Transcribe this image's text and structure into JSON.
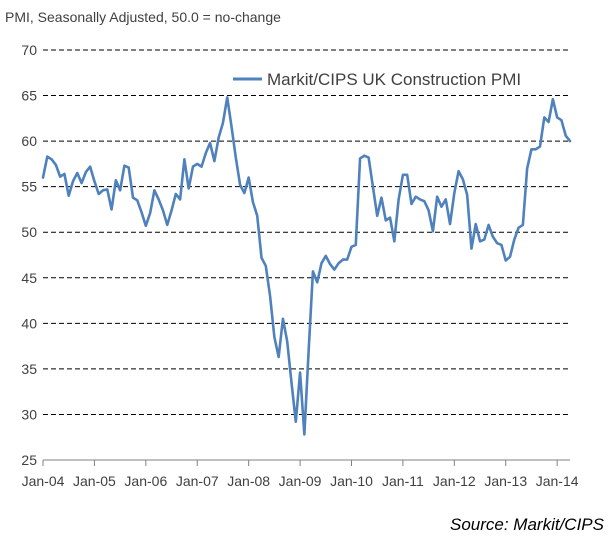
{
  "chart_data": {
    "type": "line",
    "subtitle": "PMI, Seasonally Adjusted, 50.0 = no-change",
    "source": "Source: Markit/CIPS",
    "xlabel": "",
    "ylabel": "",
    "ylim": [
      25,
      70
    ],
    "y_ticks": [
      25,
      30,
      35,
      40,
      45,
      50,
      55,
      60,
      65,
      70
    ],
    "x_tick_labels": [
      "Jan-04",
      "Jan-05",
      "Jan-06",
      "Jan-07",
      "Jan-08",
      "Jan-09",
      "Jan-10",
      "Jan-11",
      "Jan-12",
      "Jan-13",
      "Jan-14"
    ],
    "grid": "horizontal dashed",
    "legend_position": "top-right",
    "colors": {
      "line": "#4f81bd",
      "grid": "#000000",
      "axis": "#808080"
    },
    "series": [
      {
        "name": "Markit/CIPS UK Construction PMI",
        "x_start": "Jan-04",
        "frequency": "monthly",
        "values": [
          56.0,
          58.3,
          58.0,
          57.4,
          56.1,
          56.4,
          54.0,
          55.6,
          56.5,
          55.4,
          56.6,
          57.2,
          55.6,
          54.2,
          54.6,
          54.7,
          52.5,
          55.7,
          54.6,
          57.3,
          57.1,
          53.8,
          53.5,
          52.2,
          50.7,
          52.1,
          54.6,
          53.6,
          52.4,
          50.8,
          52.4,
          54.2,
          53.6,
          58.0,
          54.8,
          57.2,
          57.5,
          57.2,
          58.7,
          59.8,
          57.8,
          60.4,
          62.0,
          64.8,
          61.6,
          58.2,
          55.2,
          54.3,
          56.0,
          53.3,
          51.8,
          47.2,
          46.3,
          43.0,
          38.5,
          36.3,
          40.5,
          38.0,
          33.5,
          29.2,
          34.6,
          27.8,
          37.0,
          45.7,
          44.5,
          46.6,
          47.4,
          46.5,
          45.9,
          46.6,
          47.0,
          47.0,
          48.4,
          48.6,
          58.1,
          58.4,
          58.2,
          55.0,
          51.8,
          53.8,
          51.3,
          51.6,
          49.0,
          53.6,
          56.3,
          56.3,
          53.1,
          53.9,
          53.6,
          53.4,
          52.4,
          50.1,
          53.9,
          52.8,
          53.6,
          50.9,
          54.3,
          56.7,
          55.8,
          54.1,
          48.2,
          50.9,
          49.0,
          49.2,
          50.8,
          49.5,
          48.8,
          48.6,
          46.9,
          47.3,
          49.2,
          50.5,
          50.8,
          57.0,
          59.1,
          59.1,
          59.4,
          62.6,
          62.1,
          64.6,
          62.6,
          62.3,
          60.6,
          60.0
        ]
      }
    ]
  }
}
